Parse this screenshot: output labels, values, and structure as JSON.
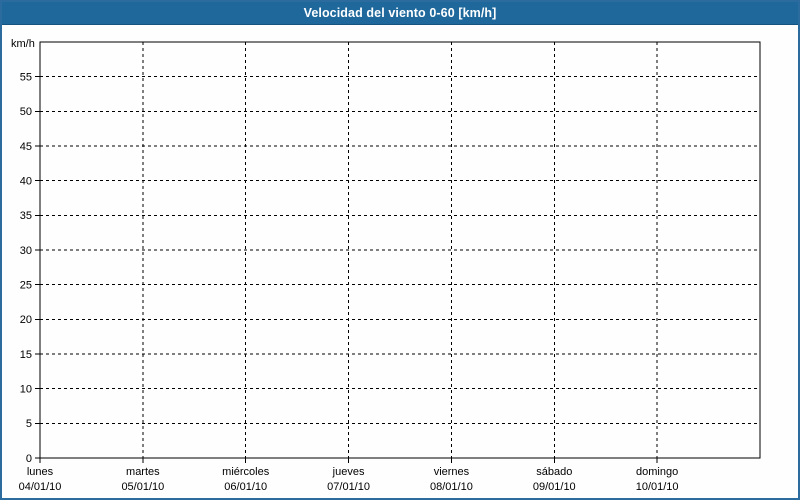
{
  "header": {
    "title": "Velocidad del viento 0-60 [km/h]"
  },
  "colors": {
    "titlebar_bg": "#1e689c",
    "titlebar_text": "#ffffff",
    "window_border": "#2b6b9e",
    "background": "#fdfefd",
    "axis": "#000000",
    "grid": "#000000",
    "tick_text": "#000000"
  },
  "y_axis": {
    "unit_label": "km/h",
    "tick_labels": [
      "0",
      "5",
      "10",
      "15",
      "20",
      "25",
      "30",
      "35",
      "40",
      "45",
      "50",
      "55"
    ]
  },
  "x_axis": {
    "days": [
      {
        "name": "lunes",
        "date": "04/01/10"
      },
      {
        "name": "martes",
        "date": "05/01/10"
      },
      {
        "name": "miércoles",
        "date": "06/01/10"
      },
      {
        "name": "jueves",
        "date": "07/01/10"
      },
      {
        "name": "viernes",
        "date": "08/01/10"
      },
      {
        "name": "sábado",
        "date": "09/01/10"
      },
      {
        "name": "domingo",
        "date": "10/01/10"
      }
    ]
  },
  "chart_data": {
    "type": "line",
    "title": "Velocidad del viento 0-60 [km/h]",
    "ylabel": "km/h",
    "ylim": [
      0,
      60
    ],
    "ytick_step": 5,
    "x_categories": [
      "lunes 04/01/10",
      "martes 05/01/10",
      "miércoles 06/01/10",
      "jueves 07/01/10",
      "viernes 08/01/10",
      "sábado 09/01/10",
      "domingo 10/01/10"
    ],
    "series": [],
    "grid": "dashed",
    "legend": "none"
  }
}
